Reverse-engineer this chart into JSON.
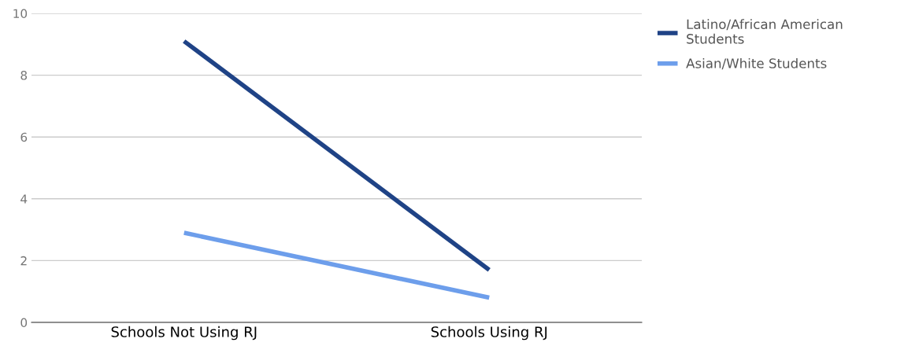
{
  "chart_data": {
    "type": "line",
    "categories": [
      "Schools Not Using RJ",
      "Schools Using RJ"
    ],
    "series": [
      {
        "name": "Latino/African American Students",
        "color": "#1f4386",
        "values": [
          9.1,
          1.7
        ]
      },
      {
        "name": "Asian/White Students",
        "color": "#6d9eeb",
        "values": [
          2.9,
          0.8
        ]
      }
    ],
    "ylim": [
      0,
      10
    ],
    "yticks": [
      0,
      2,
      4,
      6,
      8,
      10
    ],
    "grid": "y",
    "legend": "top right",
    "marker": "none",
    "line_style": "solid"
  }
}
